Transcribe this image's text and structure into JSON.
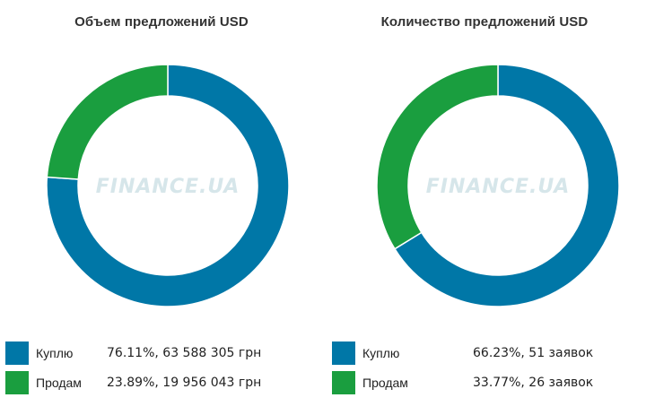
{
  "watermark": "FINANCE.UA",
  "colors": {
    "buy": "#0077a7",
    "sell": "#1a9e3f"
  },
  "chart_data": [
    {
      "type": "pie",
      "title": "Объем предложений USD",
      "slices": [
        {
          "label": "Куплю",
          "value": 76.11,
          "detail": "76.11%, 63 588 305 грн"
        },
        {
          "label": "Продам",
          "value": 23.89,
          "detail": "23.89%, 19 956 043 грн"
        }
      ]
    },
    {
      "type": "pie",
      "title": "Количество предложений USD",
      "slices": [
        {
          "label": "Куплю",
          "value": 66.23,
          "detail": "66.23%, 51 заявок"
        },
        {
          "label": "Продам",
          "value": 33.77,
          "detail": "33.77%, 26 заявок"
        }
      ]
    }
  ]
}
